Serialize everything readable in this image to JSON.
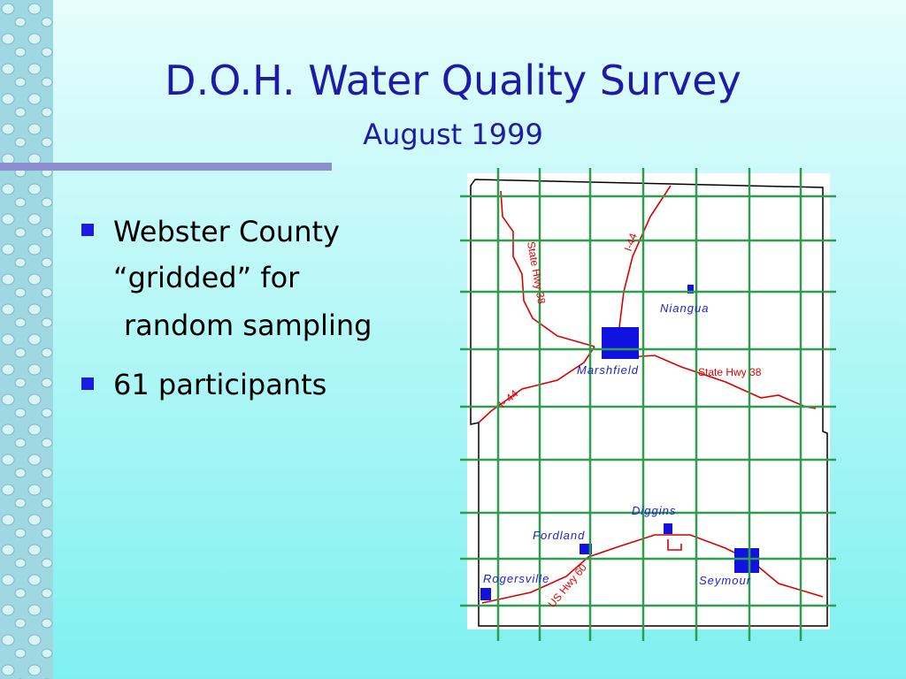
{
  "title": "D.O.H. Water Quality Survey",
  "subtitle": "August 1999",
  "bullets": [
    {
      "lines": [
        "Webster County",
        "“gridded” for",
        "random sampling"
      ]
    },
    {
      "lines": [
        "61 participants"
      ]
    }
  ],
  "map": {
    "towns": [
      "Niangua",
      "Marshfield",
      "Diggins",
      "Fordland",
      "Rogersville",
      "Seymour"
    ],
    "roads": [
      "State Hwy 38",
      "I-44",
      "State Hwy 38",
      "I- 44",
      "US Hwy 60"
    ]
  }
}
